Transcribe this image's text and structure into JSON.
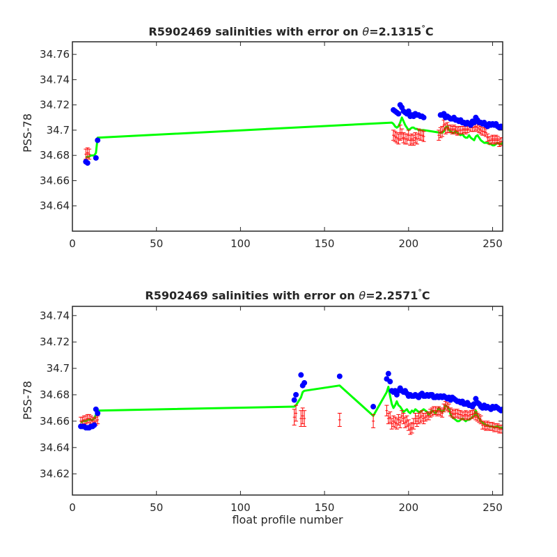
{
  "colors": {
    "float": "#0000ff",
    "mapped": "#00ff00",
    "errorbar": "#ff0000",
    "axis": "#262626"
  },
  "chart_data": [
    {
      "type": "scatter",
      "title": {
        "prefix": "R5902469 salinities with error on ",
        "theta": "θ",
        "value": "=2.1315",
        "degree": "°",
        "unit": "C"
      },
      "xlabel": "",
      "ylabel": "PSS-78",
      "xlim": [
        0,
        256
      ],
      "ylim": [
        34.62,
        34.77
      ],
      "xticks": [
        0,
        50,
        100,
        150,
        200,
        250
      ],
      "yticks": [
        34.64,
        34.66,
        34.68,
        34.7,
        34.72,
        34.74,
        34.76
      ],
      "ytick_labels": [
        "34.64",
        "34.66",
        "34.68",
        "34.7",
        "34.72",
        "34.74",
        "34.76"
      ],
      "float_salinity": {
        "x": [
          8,
          9,
          14,
          15,
          191,
          192,
          193,
          194,
          195,
          196,
          197,
          198,
          199,
          200,
          201,
          202,
          203,
          204,
          205,
          206,
          207,
          208,
          209,
          219,
          220,
          221,
          222,
          223,
          224,
          225,
          226,
          227,
          228,
          229,
          230,
          231,
          232,
          233,
          234,
          235,
          236,
          237,
          238,
          239,
          240,
          241,
          242,
          243,
          244,
          245,
          246,
          247,
          248,
          249,
          250,
          251,
          252,
          253,
          254,
          255,
          256
        ],
        "y": [
          34.675,
          34.674,
          34.678,
          34.692,
          34.716,
          34.715,
          34.714,
          34.713,
          34.72,
          34.718,
          34.715,
          34.714,
          34.713,
          34.715,
          34.711,
          34.712,
          34.711,
          34.713,
          34.712,
          34.712,
          34.711,
          34.711,
          34.71,
          34.712,
          34.712,
          34.713,
          34.71,
          34.711,
          34.71,
          34.709,
          34.709,
          34.71,
          34.708,
          34.708,
          34.707,
          34.708,
          34.706,
          34.706,
          34.705,
          34.706,
          34.705,
          34.704,
          34.707,
          34.706,
          34.71,
          34.708,
          34.706,
          34.706,
          34.705,
          34.706,
          34.704,
          34.703,
          34.705,
          34.704,
          34.705,
          34.704,
          34.705,
          34.703,
          34.702,
          34.703,
          34.702
        ]
      },
      "mapped_salinity": {
        "x": [
          8,
          9,
          10,
          11,
          12,
          13,
          14,
          15,
          190,
          191,
          192,
          193,
          194,
          195,
          196,
          197,
          198,
          199,
          200,
          201,
          202,
          203,
          204,
          205,
          206,
          207,
          208,
          209,
          219,
          220,
          221,
          222,
          223,
          224,
          225,
          226,
          227,
          228,
          229,
          230,
          231,
          232,
          233,
          234,
          235,
          236,
          237,
          238,
          239,
          240,
          241,
          242,
          243,
          244,
          245,
          246,
          247,
          248,
          249,
          250,
          251,
          252,
          253,
          254,
          255,
          256
        ],
        "y": [
          34.678,
          34.679,
          34.679,
          34.68,
          34.68,
          34.68,
          34.682,
          34.694,
          34.706,
          34.705,
          34.703,
          34.702,
          34.703,
          34.706,
          34.71,
          34.707,
          34.704,
          34.702,
          34.7,
          34.701,
          34.702,
          34.702,
          34.701,
          34.701,
          34.7,
          34.7,
          34.7,
          34.7,
          34.698,
          34.698,
          34.699,
          34.702,
          34.703,
          34.7,
          34.699,
          34.698,
          34.698,
          34.699,
          34.698,
          34.697,
          34.696,
          34.697,
          34.695,
          34.694,
          34.694,
          34.696,
          34.694,
          34.693,
          34.692,
          34.695,
          34.696,
          34.694,
          34.692,
          34.691,
          34.69,
          34.69,
          34.69,
          34.689,
          34.689,
          34.688,
          34.688,
          34.689,
          34.69,
          34.689,
          34.689,
          34.69
        ]
      },
      "mapped_error": {
        "x": [
          8,
          9,
          10,
          191,
          192,
          193,
          194,
          195,
          196,
          197,
          198,
          199,
          200,
          201,
          202,
          203,
          204,
          205,
          206,
          207,
          208,
          209,
          218,
          219,
          220,
          221,
          222,
          223,
          224,
          225,
          226,
          227,
          228,
          229,
          230,
          231,
          232,
          233,
          234,
          235,
          236,
          237,
          238,
          239,
          240,
          241,
          242,
          243,
          244,
          245,
          246,
          247,
          248,
          249,
          250,
          251,
          252,
          253,
          254,
          255,
          256
        ],
        "y": [
          34.681,
          34.682,
          34.681,
          34.696,
          34.695,
          34.694,
          34.693,
          34.698,
          34.697,
          34.694,
          34.693,
          34.693,
          34.696,
          34.692,
          34.693,
          34.692,
          34.694,
          34.693,
          34.697,
          34.696,
          34.696,
          34.695,
          34.696,
          34.698,
          34.699,
          34.704,
          34.701,
          34.702,
          34.701,
          34.701,
          34.7,
          34.701,
          34.7,
          34.699,
          34.7,
          34.7,
          34.7,
          34.701,
          34.7,
          34.701,
          34.703,
          34.702,
          34.702,
          34.702,
          34.703,
          34.702,
          34.701,
          34.7,
          34.699,
          34.699,
          34.698,
          34.694,
          34.692,
          34.692,
          34.693,
          34.692,
          34.693,
          34.692,
          34.69,
          34.691,
          34.691
        ],
        "err": [
          0.004,
          0.004,
          0.004,
          0.004,
          0.004,
          0.004,
          0.004,
          0.006,
          0.004,
          0.004,
          0.004,
          0.004,
          0.004,
          0.004,
          0.004,
          0.004,
          0.004,
          0.004,
          0.004,
          0.004,
          0.004,
          0.004,
          0.004,
          0.004,
          0.004,
          0.004,
          0.004,
          0.004,
          0.003,
          0.003,
          0.003,
          0.003,
          0.003,
          0.003,
          0.003,
          0.003,
          0.003,
          0.003,
          0.003,
          0.003,
          0.003,
          0.003,
          0.003,
          0.003,
          0.003,
          0.003,
          0.003,
          0.003,
          0.003,
          0.003,
          0.003,
          0.003,
          0.003,
          0.003,
          0.003,
          0.003,
          0.003,
          0.003,
          0.003,
          0.003,
          0.003
        ]
      }
    },
    {
      "type": "scatter",
      "title": {
        "prefix": "R5902469 salinities with error on ",
        "theta": "θ",
        "value": "=2.2571",
        "degree": "°",
        "unit": "C"
      },
      "xlabel": "float profile number",
      "ylabel": "PSS-78",
      "xlim": [
        0,
        256
      ],
      "ylim": [
        34.604,
        34.747
      ],
      "xticks": [
        0,
        50,
        100,
        150,
        200,
        250
      ],
      "yticks": [
        34.62,
        34.64,
        34.66,
        34.68,
        34.7,
        34.72,
        34.74
      ],
      "ytick_labels": [
        "34.62",
        "34.64",
        "34.66",
        "34.68",
        "34.7",
        "34.72",
        "34.74"
      ],
      "float_salinity": {
        "x": [
          5,
          6,
          7,
          8,
          9,
          10,
          11,
          12,
          13,
          14,
          15,
          132,
          133,
          136,
          137,
          138,
          159,
          179,
          187,
          188,
          189,
          190,
          191,
          192,
          193,
          194,
          195,
          196,
          197,
          198,
          199,
          200,
          201,
          202,
          203,
          204,
          205,
          206,
          207,
          208,
          209,
          210,
          211,
          212,
          213,
          214,
          215,
          216,
          217,
          218,
          219,
          220,
          221,
          222,
          223,
          224,
          225,
          226,
          227,
          228,
          229,
          230,
          231,
          232,
          233,
          234,
          235,
          236,
          237,
          238,
          239,
          240,
          241,
          242,
          243,
          244,
          245,
          246,
          247,
          248,
          249,
          250,
          251,
          252,
          253,
          254,
          255,
          256
        ],
        "y": [
          34.656,
          34.656,
          34.656,
          34.655,
          34.655,
          34.655,
          34.656,
          34.656,
          34.657,
          34.669,
          34.666,
          34.676,
          34.68,
          34.695,
          34.687,
          34.689,
          34.694,
          34.671,
          34.692,
          34.696,
          34.69,
          34.683,
          34.682,
          34.683,
          34.68,
          34.683,
          34.685,
          34.683,
          34.682,
          34.683,
          34.681,
          34.679,
          34.68,
          34.679,
          34.679,
          34.68,
          34.679,
          34.678,
          34.68,
          34.681,
          34.679,
          34.679,
          34.68,
          34.679,
          34.68,
          34.68,
          34.678,
          34.678,
          34.679,
          34.678,
          34.679,
          34.678,
          34.679,
          34.678,
          34.677,
          34.678,
          34.676,
          34.678,
          34.677,
          34.676,
          34.675,
          34.675,
          34.674,
          34.675,
          34.673,
          34.673,
          34.674,
          34.672,
          34.672,
          34.671,
          34.673,
          34.677,
          34.674,
          34.673,
          34.671,
          34.67,
          34.672,
          34.67,
          34.671,
          34.67,
          34.669,
          34.671,
          34.67,
          34.671,
          34.67,
          34.669,
          34.668,
          34.669
        ]
      },
      "mapped_salinity": {
        "x": [
          5,
          6,
          7,
          8,
          9,
          10,
          11,
          12,
          13,
          14,
          15,
          132,
          133,
          136,
          137,
          138,
          159,
          179,
          187,
          188,
          189,
          190,
          191,
          192,
          193,
          194,
          195,
          196,
          197,
          198,
          199,
          200,
          201,
          202,
          203,
          204,
          205,
          206,
          207,
          208,
          209,
          210,
          211,
          212,
          213,
          214,
          215,
          216,
          217,
          218,
          219,
          220,
          221,
          222,
          223,
          224,
          225,
          226,
          227,
          228,
          229,
          230,
          231,
          232,
          233,
          234,
          235,
          236,
          237,
          238,
          239,
          240,
          241,
          242,
          243,
          244,
          245,
          246,
          247,
          248,
          249,
          250,
          251,
          252,
          253,
          254,
          255,
          256
        ],
        "y": [
          34.659,
          34.66,
          34.66,
          34.66,
          34.661,
          34.661,
          34.661,
          34.661,
          34.662,
          34.665,
          34.668,
          34.671,
          34.672,
          34.678,
          34.682,
          34.683,
          34.687,
          34.664,
          34.682,
          34.686,
          34.679,
          34.673,
          34.67,
          34.672,
          34.675,
          34.672,
          34.671,
          34.669,
          34.667,
          34.668,
          34.669,
          34.667,
          34.666,
          34.668,
          34.667,
          34.669,
          34.668,
          34.667,
          34.667,
          34.668,
          34.669,
          34.668,
          34.667,
          34.665,
          34.666,
          34.668,
          34.667,
          34.666,
          34.668,
          34.67,
          34.668,
          34.667,
          34.668,
          34.672,
          34.671,
          34.669,
          34.665,
          34.663,
          34.662,
          34.661,
          34.66,
          34.66,
          34.661,
          34.662,
          34.661,
          34.66,
          34.661,
          34.661,
          34.662,
          34.663,
          34.664,
          34.668,
          34.664,
          34.662,
          34.66,
          34.659,
          34.658,
          34.657,
          34.657,
          34.656,
          34.656,
          34.656,
          34.655,
          34.656,
          34.656,
          34.655,
          34.655,
          34.655
        ]
      },
      "mapped_error": {
        "x": [
          5,
          6,
          7,
          8,
          9,
          10,
          11,
          12,
          13,
          14,
          15,
          132,
          133,
          136,
          137,
          138,
          159,
          179,
          187,
          188,
          189,
          190,
          191,
          192,
          193,
          194,
          195,
          196,
          197,
          198,
          199,
          200,
          201,
          202,
          203,
          204,
          205,
          206,
          207,
          208,
          209,
          210,
          211,
          212,
          213,
          214,
          215,
          216,
          217,
          218,
          219,
          220,
          221,
          222,
          223,
          224,
          225,
          226,
          227,
          228,
          229,
          230,
          231,
          232,
          233,
          234,
          235,
          236,
          237,
          238,
          239,
          240,
          241,
          242,
          243,
          244,
          245,
          246,
          247,
          248,
          249,
          250,
          251,
          252,
          253,
          254,
          255,
          256
        ],
        "y": [
          34.66,
          34.66,
          34.661,
          34.661,
          34.662,
          34.662,
          34.661,
          34.66,
          34.659,
          34.66,
          34.661,
          34.663,
          34.666,
          34.662,
          34.664,
          34.662,
          34.661,
          34.66,
          34.668,
          34.662,
          34.663,
          34.658,
          34.66,
          34.659,
          34.658,
          34.661,
          34.659,
          34.664,
          34.662,
          34.659,
          34.66,
          34.657,
          34.654,
          34.655,
          34.658,
          34.662,
          34.66,
          34.662,
          34.663,
          34.664,
          34.662,
          34.663,
          34.664,
          34.664,
          34.666,
          34.667,
          34.668,
          34.668,
          34.667,
          34.668,
          34.667,
          34.666,
          34.67,
          34.672,
          34.671,
          34.67,
          34.667,
          34.666,
          34.665,
          34.666,
          34.666,
          34.665,
          34.665,
          34.664,
          34.664,
          34.665,
          34.664,
          34.664,
          34.665,
          34.665,
          34.666,
          34.664,
          34.663,
          34.662,
          34.661,
          34.657,
          34.657,
          34.656,
          34.657,
          34.656,
          34.656,
          34.656,
          34.655,
          34.655,
          34.655,
          34.654,
          34.654,
          34.654
        ],
        "err": [
          0.003,
          0.003,
          0.003,
          0.003,
          0.003,
          0.003,
          0.003,
          0.003,
          0.003,
          0.003,
          0.003,
          0.006,
          0.006,
          0.006,
          0.006,
          0.006,
          0.005,
          0.005,
          0.004,
          0.004,
          0.004,
          0.004,
          0.004,
          0.004,
          0.004,
          0.004,
          0.004,
          0.004,
          0.004,
          0.004,
          0.004,
          0.004,
          0.004,
          0.004,
          0.004,
          0.004,
          0.004,
          0.004,
          0.004,
          0.004,
          0.004,
          0.003,
          0.003,
          0.003,
          0.003,
          0.003,
          0.003,
          0.003,
          0.003,
          0.003,
          0.003,
          0.003,
          0.003,
          0.003,
          0.003,
          0.003,
          0.003,
          0.003,
          0.003,
          0.003,
          0.003,
          0.003,
          0.003,
          0.003,
          0.003,
          0.003,
          0.003,
          0.003,
          0.003,
          0.003,
          0.003,
          0.003,
          0.003,
          0.003,
          0.003,
          0.003,
          0.003,
          0.003,
          0.003,
          0.003,
          0.003,
          0.003,
          0.003,
          0.003,
          0.003,
          0.003,
          0.003,
          0.003
        ]
      }
    }
  ]
}
